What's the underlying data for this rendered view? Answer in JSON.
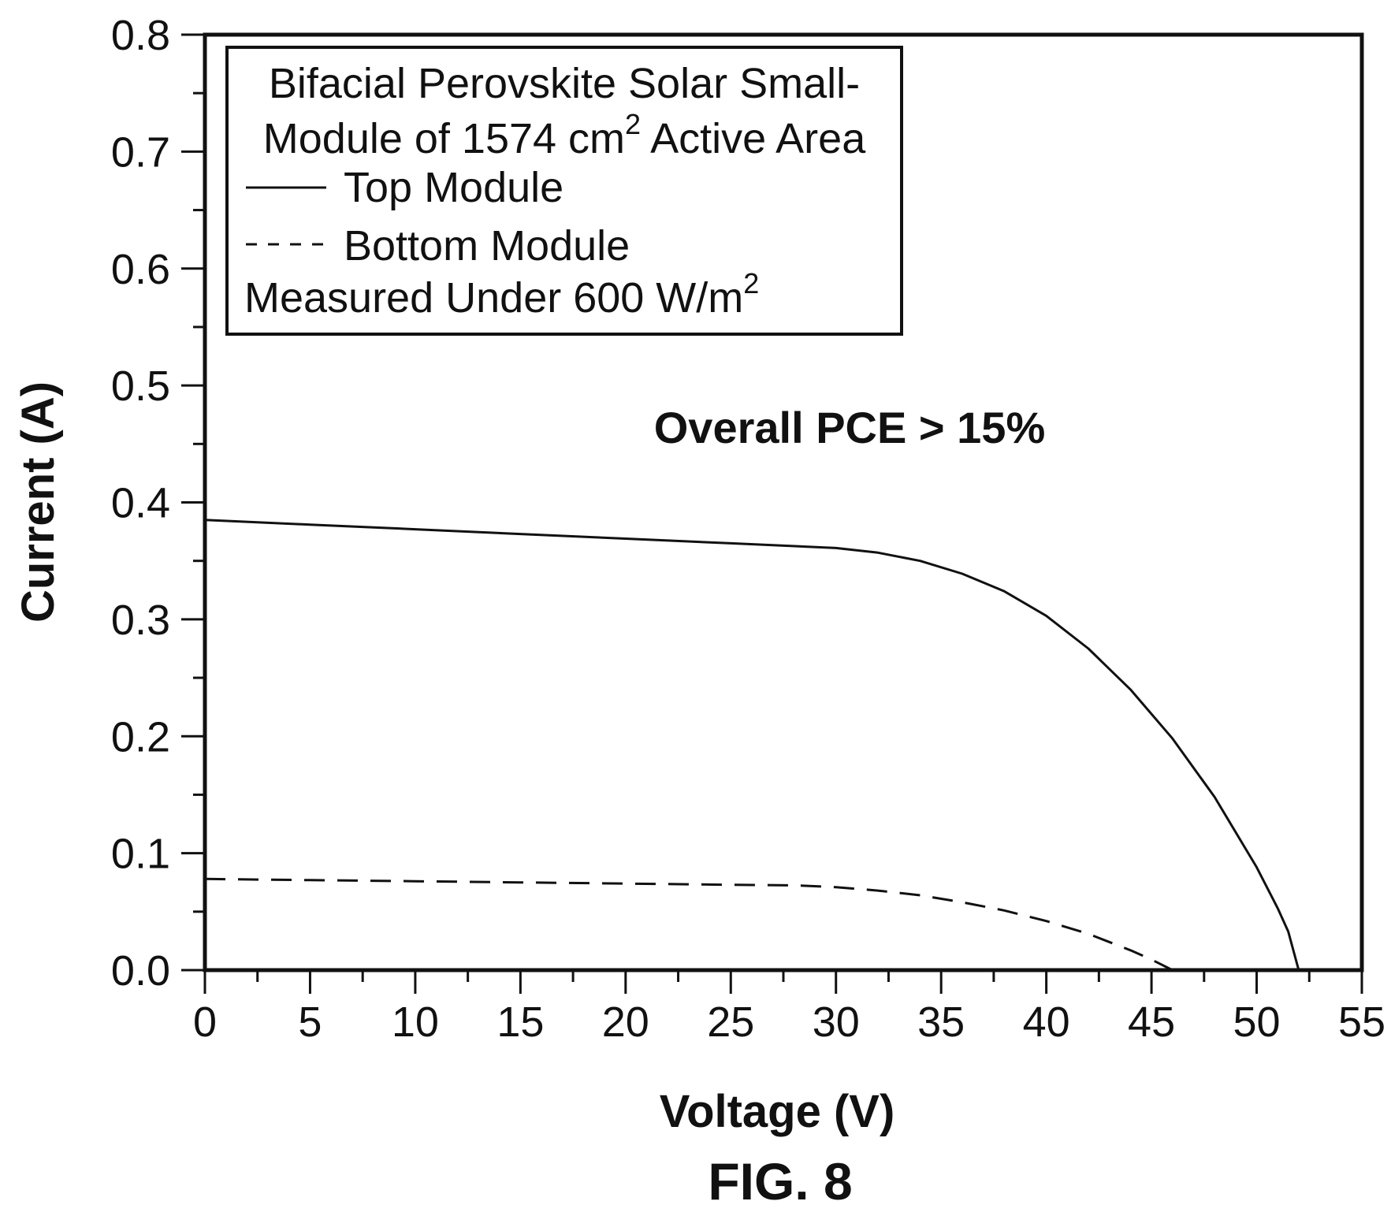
{
  "chart_data": {
    "type": "line",
    "xlabel": "Voltage (V)",
    "ylabel": "Current (A)",
    "xlim": [
      0,
      55
    ],
    "ylim": [
      0,
      0.8
    ],
    "x_ticks": [
      "0",
      "5",
      "10",
      "15",
      "20",
      "25",
      "30",
      "35",
      "40",
      "45",
      "50",
      "55"
    ],
    "y_ticks": [
      "0.0",
      "0.1",
      "0.2",
      "0.3",
      "0.4",
      "0.5",
      "0.6",
      "0.7",
      "0.8"
    ],
    "grid": false,
    "legend": {
      "placement": "top-left",
      "title_line1": "Bifacial Perovskite Solar Small-",
      "title_line2_prefix": "Module of 1574 cm",
      "title_line2_sup": "2",
      "title_line2_suffix": " Active Area",
      "footer_prefix": "Measured Under 600 W/m",
      "footer_sup": "2"
    },
    "annotation": "Overall PCE > 15%",
    "figure_label": "FIG. 8",
    "series": [
      {
        "name": "Top Module",
        "style": "solid",
        "color": "#111111",
        "x": [
          0,
          5,
          10,
          15,
          20,
          25,
          30,
          32,
          34,
          36,
          38,
          40,
          42,
          44,
          46,
          48,
          50,
          51,
          51.5,
          52
        ],
        "y": [
          0.385,
          0.381,
          0.377,
          0.373,
          0.369,
          0.365,
          0.361,
          0.357,
          0.35,
          0.339,
          0.324,
          0.303,
          0.275,
          0.24,
          0.198,
          0.148,
          0.088,
          0.053,
          0.033,
          0.0
        ]
      },
      {
        "name": "Bottom Module",
        "style": "dashed",
        "color": "#111111",
        "x": [
          0,
          5,
          10,
          15,
          20,
          25,
          28,
          30,
          32,
          34,
          36,
          38,
          40,
          42,
          44,
          45,
          46
        ],
        "y": [
          0.078,
          0.077,
          0.076,
          0.075,
          0.074,
          0.073,
          0.0725,
          0.071,
          0.068,
          0.064,
          0.058,
          0.051,
          0.042,
          0.031,
          0.017,
          0.009,
          0.0
        ]
      }
    ]
  }
}
